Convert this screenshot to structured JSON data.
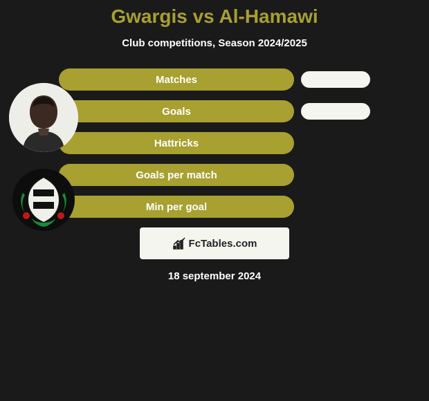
{
  "title": "Gwargis vs Al-Hamawi",
  "subtitle": "Club competitions, Season 2024/2025",
  "colors": {
    "background": "#1a1a1a",
    "bar_primary": "#a8a030",
    "bar_secondary": "#f5f5f0",
    "title": "#a8a030",
    "text": "#ffffff"
  },
  "stats": [
    {
      "label": "Matches",
      "show_right": true
    },
    {
      "label": "Goals",
      "show_right": true
    },
    {
      "label": "Hattricks",
      "show_right": false
    },
    {
      "label": "Goals per match",
      "show_right": false
    },
    {
      "label": "Min per goal",
      "show_right": false
    }
  ],
  "branding": {
    "icon": "chart-icon",
    "text": "FcTables.com"
  },
  "date": "18 september 2024",
  "player_avatar": {
    "name": "player-photo"
  },
  "club_badge": {
    "name": "club-crest"
  }
}
